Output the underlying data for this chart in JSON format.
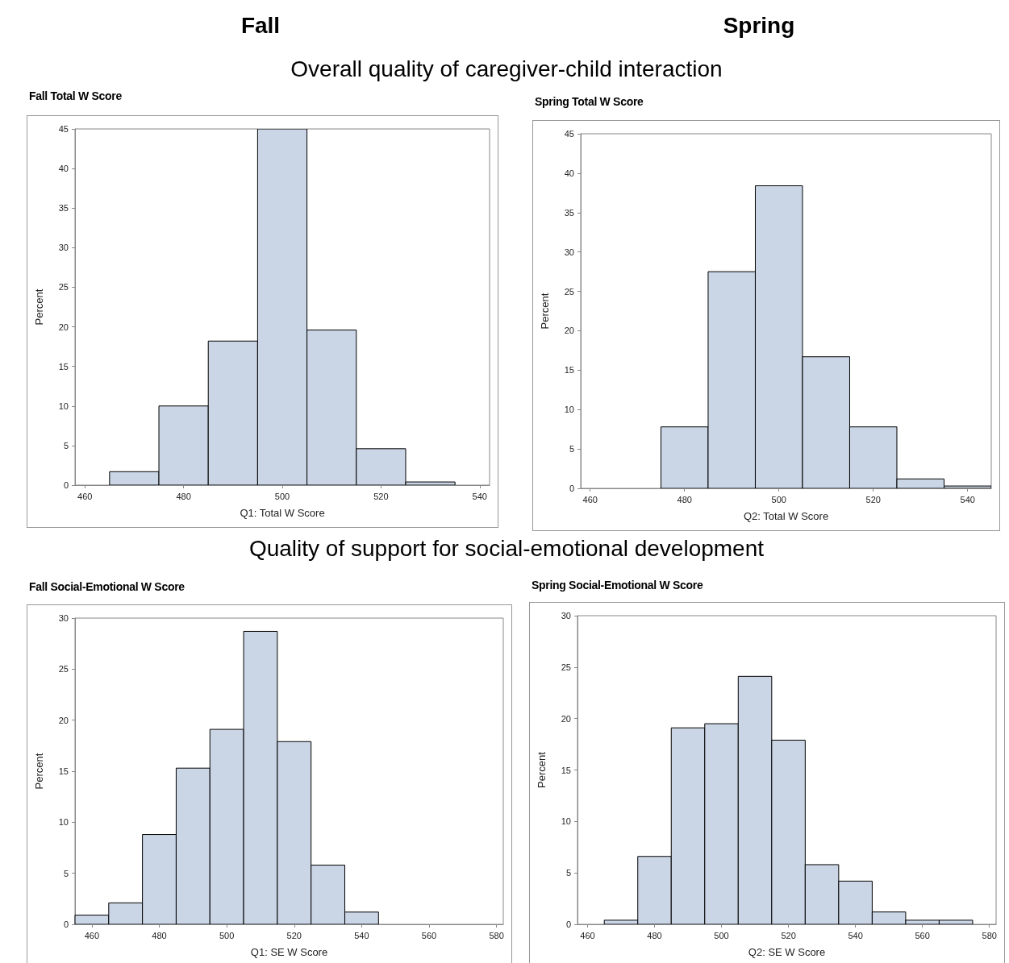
{
  "chart_data": [
    {
      "type": "histogram",
      "title": "Fall Total W Score",
      "subtitle": "Overall quality of caregiver-child interaction",
      "annotations": [
        "Fall"
      ],
      "xlabel": "Q1: Total W Score",
      "ylabel": "Percent",
      "color": "#cad5e5",
      "bins": [
        465,
        475,
        485,
        495,
        505,
        515,
        525,
        535
      ],
      "values": [
        1.7,
        10.0,
        18.2,
        45,
        19.6,
        4.6,
        0.4
      ],
      "xlim": [
        458,
        542
      ],
      "xticks": [
        460,
        480,
        500,
        520,
        540
      ],
      "ylim": [
        0,
        45
      ],
      "yticks": [
        0,
        5,
        10,
        15,
        20,
        25,
        30,
        35,
        40,
        45
      ],
      "grid": false
    },
    {
      "type": "histogram",
      "title": "Spring Total W Score",
      "annotations": [
        "Spring"
      ],
      "xlabel": "Q2: Total W Score",
      "ylabel": "Percent",
      "color": "#cad5e5",
      "bins": [
        475,
        485,
        495,
        505,
        515,
        525,
        535,
        545
      ],
      "values": [
        7.8,
        27.5,
        38.4,
        16.7,
        7.8,
        1.2,
        0.3
      ],
      "xlim": [
        458,
        545
      ],
      "xticks": [
        460,
        480,
        500,
        520,
        540
      ],
      "ylim": [
        0,
        45
      ],
      "yticks": [
        0,
        5,
        10,
        15,
        20,
        25,
        30,
        35,
        40,
        45
      ],
      "grid": false
    },
    {
      "type": "histogram",
      "title": "Fall Social-Emotional W Score",
      "subtitle": "Quality of support for social-emotional development",
      "xlabel": "Q1: SE W Score",
      "ylabel": "Percent",
      "color": "#cad5e5",
      "bins": [
        455,
        465,
        475,
        485,
        495,
        505,
        515,
        525,
        535,
        545
      ],
      "values": [
        0.9,
        2.1,
        8.8,
        15.3,
        19.1,
        28.7,
        17.9,
        5.8,
        1.2
      ],
      "xlim": [
        455,
        582
      ],
      "xticks": [
        460,
        480,
        500,
        520,
        540,
        560,
        580
      ],
      "ylim": [
        0,
        30
      ],
      "yticks": [
        0,
        5,
        10,
        15,
        20,
        25,
        30
      ],
      "grid": false
    },
    {
      "type": "histogram",
      "title": "Spring Social-Emotional W Score",
      "xlabel": "Q2: SE W Score",
      "ylabel": "Percent",
      "color": "#cad5e5",
      "bins": [
        465,
        475,
        485,
        495,
        505,
        515,
        525,
        535,
        545,
        555,
        565,
        575
      ],
      "values": [
        0.4,
        6.6,
        19.1,
        19.5,
        24.1,
        17.9,
        5.8,
        4.2,
        1.2,
        0.4,
        0.4
      ],
      "xlim": [
        457,
        582
      ],
      "xticks": [
        460,
        480,
        500,
        520,
        540,
        560,
        580
      ],
      "ylim": [
        0,
        30
      ],
      "yticks": [
        0,
        5,
        10,
        15,
        20,
        25,
        30
      ],
      "grid": false
    }
  ]
}
